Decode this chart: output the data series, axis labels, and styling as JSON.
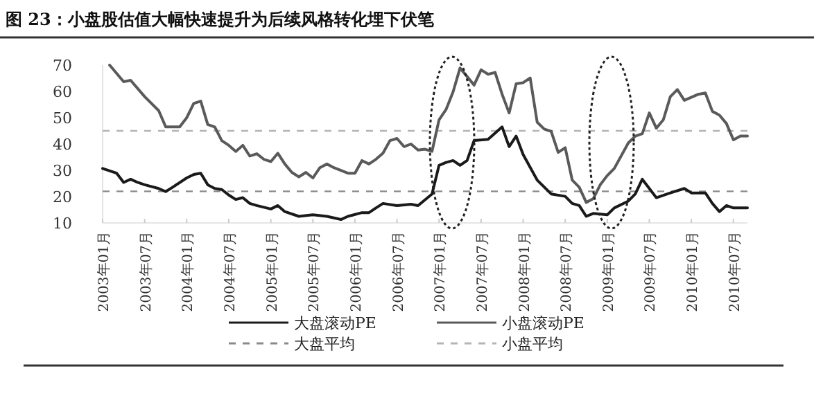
{
  "chart_data": {
    "type": "line",
    "title": "图 23：小盘股估值大幅快速提升为后续风格转化埋下伏笔",
    "xlim": [
      "2003-01",
      "2010-09"
    ],
    "xticks": [
      {
        "value": "2003-01",
        "label": "2003年01月"
      },
      {
        "value": "2003-07",
        "label": "2003年07月"
      },
      {
        "value": "2004-01",
        "label": "2004年01月"
      },
      {
        "value": "2004-07",
        "label": "2004年07月"
      },
      {
        "value": "2005-01",
        "label": "2005年01月"
      },
      {
        "value": "2005-07",
        "label": "2005年07月"
      },
      {
        "value": "2006-01",
        "label": "2006年01月"
      },
      {
        "value": "2006-07",
        "label": "2006年07月"
      },
      {
        "value": "2007-01",
        "label": "2007年01月"
      },
      {
        "value": "2007-07",
        "label": "2007年07月"
      },
      {
        "value": "2008-01",
        "label": "2008年01月"
      },
      {
        "value": "2008-07",
        "label": "2008年07月"
      },
      {
        "value": "2009-01",
        "label": "2009年01月"
      },
      {
        "value": "2009-07",
        "label": "2009年07月"
      },
      {
        "value": "2010-01",
        "label": "2010年01月"
      },
      {
        "value": "2010-07",
        "label": "2010年07月"
      }
    ],
    "ylim": [
      10,
      70
    ],
    "yticks": [
      10,
      20,
      30,
      40,
      50,
      60,
      70
    ],
    "grid": false,
    "legend": "bottom",
    "line_style": "solid",
    "marker": "none",
    "series": [
      {
        "name": "大盘滚动PE",
        "color": "#1a1a1a",
        "x": [
          "2003-01",
          "2003-03",
          "2003-04",
          "2003-05",
          "2003-06",
          "2003-07",
          "2003-09",
          "2003-10",
          "2003-11",
          "2004-01",
          "2004-02",
          "2004-03",
          "2004-04",
          "2004-05",
          "2004-06",
          "2004-07",
          "2004-08",
          "2004-09",
          "2004-10",
          "2004-11",
          "2005-01",
          "2005-02",
          "2005-03",
          "2005-05",
          "2005-07",
          "2005-09",
          "2005-11",
          "2005-12",
          "2006-02",
          "2006-03",
          "2006-04",
          "2006-05",
          "2006-07",
          "2006-09",
          "2006-10",
          "2006-12",
          "2007-01",
          "2007-02",
          "2007-03",
          "2007-04",
          "2007-05",
          "2007-06",
          "2007-08",
          "2007-10",
          "2007-11",
          "2007-12",
          "2008-01",
          "2008-03",
          "2008-05",
          "2008-07",
          "2008-08",
          "2008-09",
          "2008-10",
          "2008-11",
          "2009-01",
          "2009-02",
          "2009-04",
          "2009-05",
          "2009-06",
          "2009-08",
          "2009-10",
          "2009-12",
          "2010-01",
          "2010-03",
          "2010-04",
          "2010-05",
          "2010-06",
          "2010-07",
          "2010-09"
        ],
        "values": [
          30.7,
          28.9,
          25.4,
          26.6,
          25.4,
          24.5,
          23.1,
          21.9,
          23.6,
          27.1,
          28.4,
          28.9,
          24.5,
          23.1,
          22.7,
          20.6,
          18.9,
          19.6,
          17.4,
          16.6,
          15.3,
          16.6,
          14.3,
          12.5,
          13.1,
          12.5,
          11.3,
          12.5,
          13.9,
          13.9,
          15.7,
          17.4,
          16.6,
          17.1,
          16.6,
          21,
          31.9,
          33,
          33.7,
          31.9,
          33.7,
          41.3,
          41.8,
          46.5,
          39,
          43,
          36,
          26.3,
          21,
          20.1,
          17.4,
          16.6,
          12.5,
          13.6,
          13.1,
          15.7,
          18.3,
          21,
          26.6,
          19.6,
          21.4,
          23.1,
          21.4,
          21.4,
          17.4,
          14.3,
          16.6,
          15.7,
          15.7
        ]
      },
      {
        "name": "小盘滚动PE",
        "color": "#5a5a5a",
        "x": [
          "2003-02",
          "2003-04",
          "2003-05",
          "2003-07",
          "2003-09",
          "2003-10",
          "2003-12",
          "2004-01",
          "2004-02",
          "2004-03",
          "2004-04",
          "2004-05",
          "2004-06",
          "2004-07",
          "2004-08",
          "2004-09",
          "2004-10",
          "2004-11",
          "2004-12",
          "2005-01",
          "2005-02",
          "2005-03",
          "2005-04",
          "2005-05",
          "2005-06",
          "2005-07",
          "2005-08",
          "2005-09",
          "2005-10",
          "2005-12",
          "2006-01",
          "2006-02",
          "2006-03",
          "2006-04",
          "2006-05",
          "2006-06",
          "2006-07",
          "2006-08",
          "2006-09",
          "2006-10",
          "2006-11",
          "2006-12",
          "2007-01",
          "2007-02",
          "2007-03",
          "2007-04",
          "2007-06",
          "2007-07",
          "2007-08",
          "2007-09",
          "2007-10",
          "2007-11",
          "2007-12",
          "2008-01",
          "2008-02",
          "2008-03",
          "2008-04",
          "2008-05",
          "2008-06",
          "2008-07",
          "2008-08",
          "2008-09",
          "2008-10",
          "2008-11",
          "2008-12",
          "2009-01",
          "2009-02",
          "2009-04",
          "2009-05",
          "2009-06",
          "2009-07",
          "2009-08",
          "2009-09",
          "2009-10",
          "2009-11",
          "2009-12",
          "2010-02",
          "2010-03",
          "2010-04",
          "2010-05",
          "2010-06",
          "2010-07",
          "2010-08",
          "2010-09"
        ],
        "values": [
          70,
          63.7,
          64.2,
          58,
          52.7,
          46.5,
          46.5,
          50,
          55.4,
          56.3,
          47.4,
          46.5,
          41.3,
          39.5,
          37.2,
          39.5,
          35.4,
          36.3,
          34.2,
          33.3,
          36.5,
          32.4,
          29.2,
          27.5,
          29.2,
          27.1,
          31,
          32.4,
          31,
          28.9,
          28.9,
          33.7,
          32.4,
          34.2,
          36.5,
          41.3,
          42.1,
          39,
          40,
          37.7,
          38,
          37.2,
          49.2,
          53.1,
          59.8,
          68.9,
          62.4,
          68.2,
          66.5,
          67.2,
          58.9,
          51.8,
          62.9,
          63.3,
          65.1,
          48.3,
          45.7,
          44.8,
          36.8,
          38.6,
          26.3,
          23.6,
          17.8,
          19.2,
          24.5,
          28,
          30.7,
          40.4,
          43,
          43.9,
          51.8,
          46,
          49.2,
          58,
          60.7,
          56.6,
          58.9,
          59.4,
          52.4,
          51,
          47.8,
          41.6,
          43,
          43
        ]
      }
    ],
    "ref_lines": [
      {
        "axis": "y",
        "value": 22,
        "label": "大盘平均",
        "color": "#8a8a8a",
        "line_style": "dashed"
      },
      {
        "axis": "y",
        "value": 45,
        "label": "小盘平均",
        "color": "#b5b5b5",
        "line_style": "dashed"
      }
    ]
  }
}
